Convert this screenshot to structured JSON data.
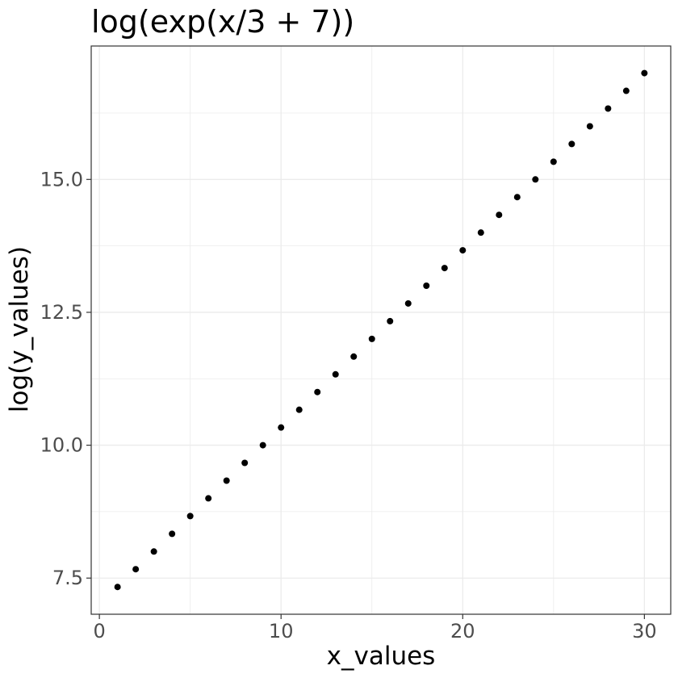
{
  "chart_data": {
    "type": "scatter",
    "title": "log(exp(x/3 + 7))",
    "xlabel": "x_values",
    "ylabel": "log(y_values)",
    "x": [
      1,
      2,
      3,
      4,
      5,
      6,
      7,
      8,
      9,
      10,
      11,
      12,
      13,
      14,
      15,
      16,
      17,
      18,
      19,
      20,
      21,
      22,
      23,
      24,
      25,
      26,
      27,
      28,
      29,
      30
    ],
    "y": [
      7.333,
      7.667,
      8.0,
      8.333,
      8.667,
      9.0,
      9.333,
      9.667,
      10.0,
      10.333,
      10.667,
      11.0,
      11.333,
      11.667,
      12.0,
      12.333,
      12.667,
      13.0,
      13.333,
      13.667,
      14.0,
      14.333,
      14.667,
      15.0,
      15.333,
      15.667,
      16.0,
      16.333,
      16.667,
      17.0
    ],
    "xlim": [
      -0.45,
      31.45
    ],
    "ylim": [
      6.82,
      17.51
    ],
    "x_ticks": [
      0,
      10,
      20,
      30
    ],
    "x_tick_labels": [
      "0",
      "10",
      "20",
      "30"
    ],
    "y_ticks": [
      7.5,
      10.0,
      12.5,
      15.0
    ],
    "y_tick_labels": [
      "7.5",
      "10.0",
      "12.5",
      "15.0"
    ],
    "grid": true,
    "point_color": "#000000",
    "grid_color": "#ebebeb",
    "panel_border_color": "#333333"
  }
}
